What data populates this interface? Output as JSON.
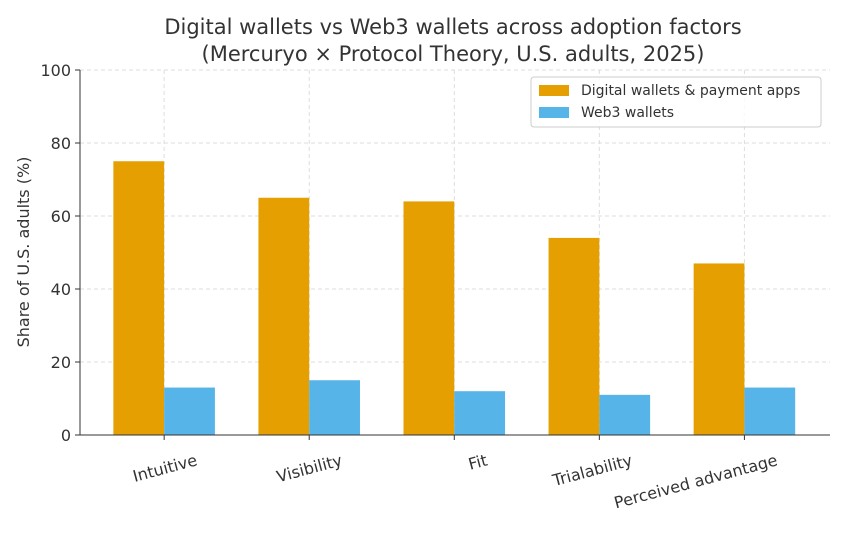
{
  "chart_data": {
    "type": "bar",
    "title": "Digital wallets vs Web3 wallets across adoption factors",
    "subtitle": "(Mercuryo × Protocol Theory, U.S. adults, 2025)",
    "xlabel": "",
    "ylabel": "Share of U.S. adults (%)",
    "ylim": [
      0,
      100
    ],
    "yticks": [
      0,
      20,
      40,
      60,
      80,
      100
    ],
    "grid": true,
    "legend_position": "top-right",
    "categories": [
      "Intuitive",
      "Visibility",
      "Fit",
      "Trialability",
      "Perceived advantage"
    ],
    "series": [
      {
        "name": "Digital wallets & payment apps",
        "color": "#E69F00",
        "values": [
          75,
          65,
          64,
          54,
          47
        ]
      },
      {
        "name": "Web3 wallets",
        "color": "#56B4E9",
        "values": [
          13,
          15,
          12,
          11,
          13
        ]
      }
    ]
  }
}
